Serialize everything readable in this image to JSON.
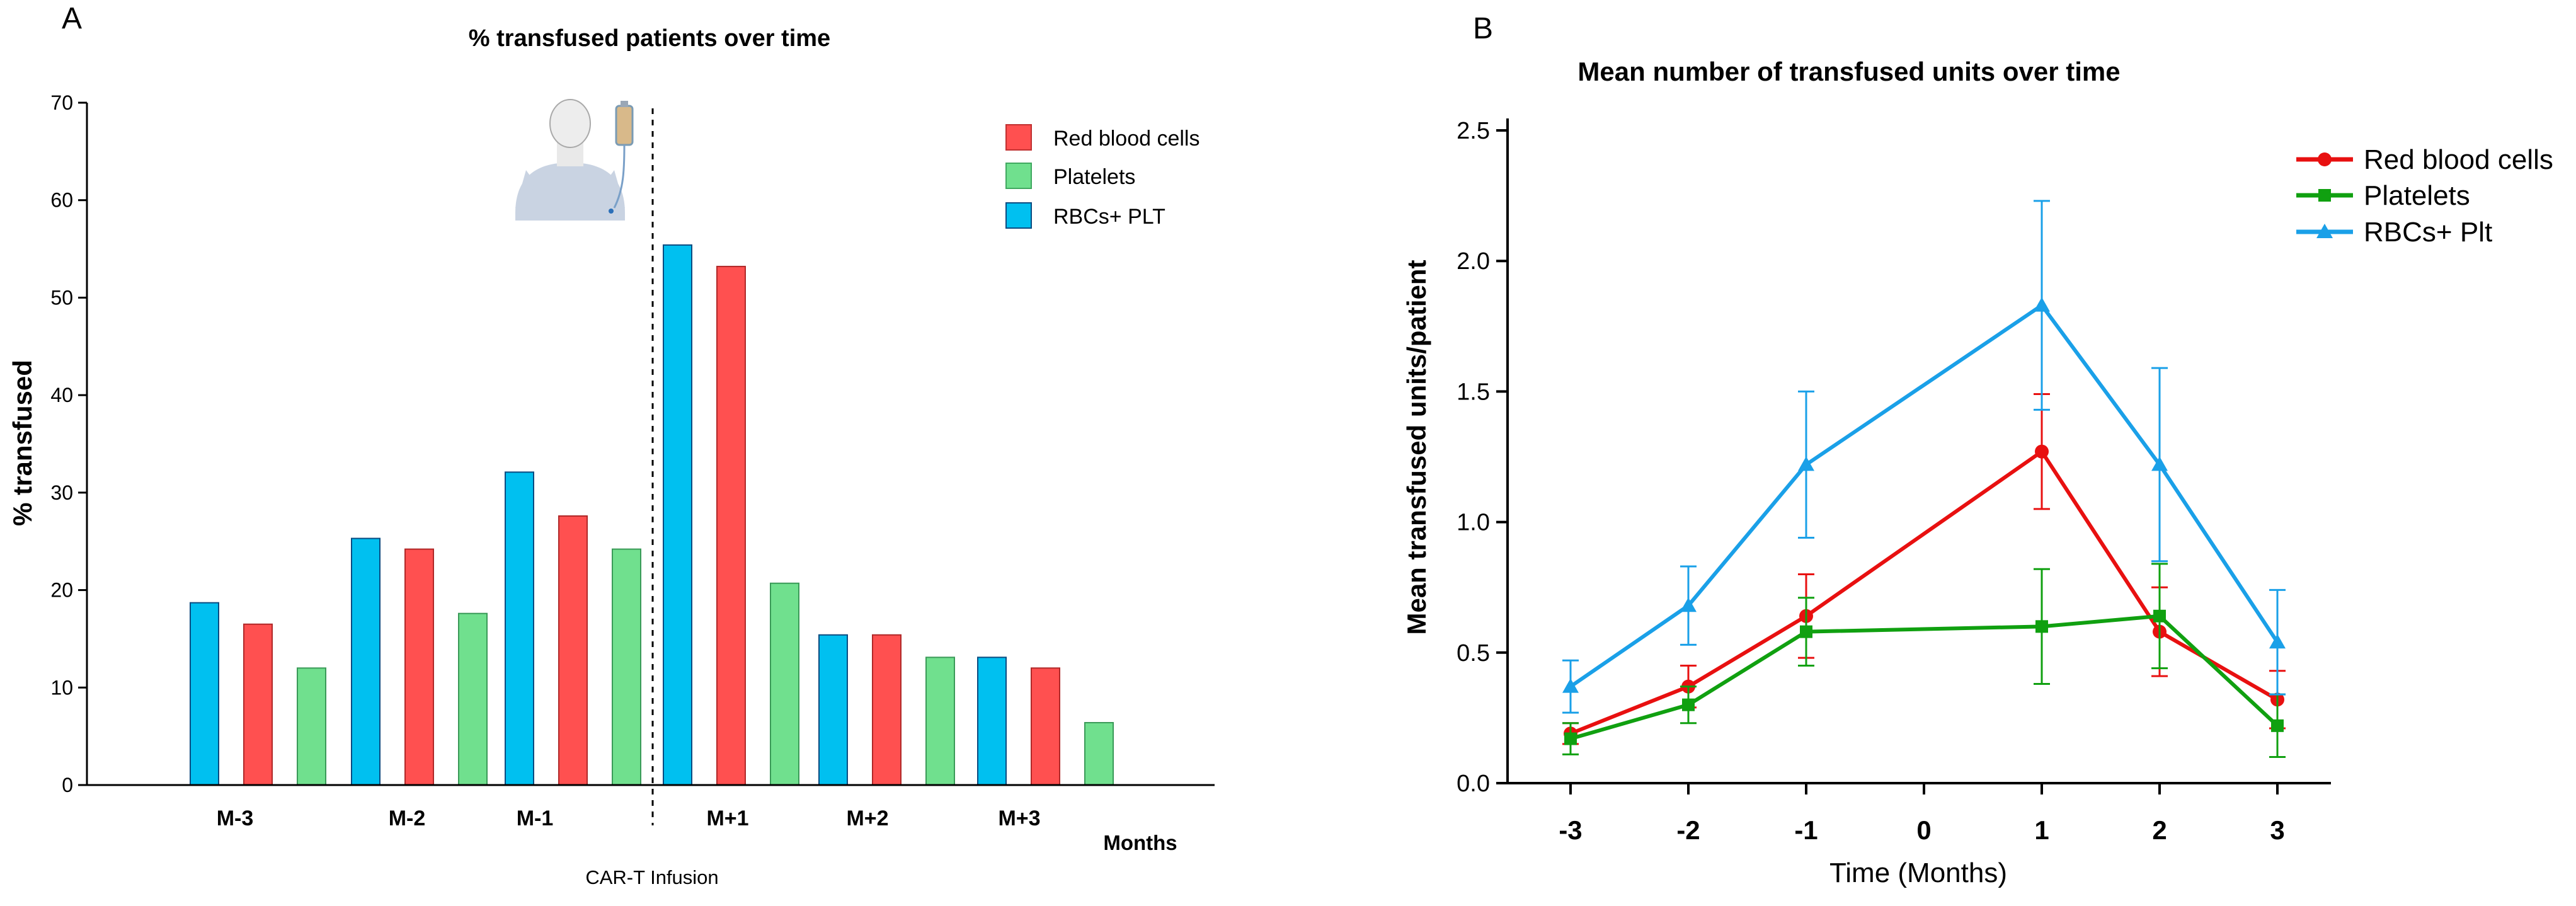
{
  "chart_data": [
    {
      "type": "bar",
      "panel_label": "A",
      "title": "%  transfused patients over time",
      "ylabel": "% transfused",
      "xlabel": "Months",
      "ylim": [
        0,
        70
      ],
      "yticks": [
        0,
        10,
        20,
        30,
        40,
        50,
        60,
        70
      ],
      "categories": [
        "M-3",
        "M-2",
        "M-1",
        "M+1",
        "M+2",
        "M+3"
      ],
      "series": [
        {
          "name": "Red blood cells",
          "color": "#ff5050",
          "values": [
            16.5,
            24.2,
            27.6,
            53.2,
            15.4,
            12.0
          ]
        },
        {
          "name": "Platelets",
          "color": "#70e08e",
          "values": [
            12.0,
            17.6,
            24.2,
            20.7,
            13.1,
            6.4
          ]
        },
        {
          "name": "RBCs+ PLT",
          "color": "#00c0f0",
          "values": [
            18.7,
            25.3,
            32.1,
            55.4,
            15.4,
            13.1
          ]
        }
      ],
      "bar_order": [
        [
          "RBCs+ PLT",
          "Red blood cells",
          "Platelets"
        ],
        [
          "RBCs+ PLT",
          "Red blood cells",
          "Platelets"
        ],
        [
          "RBCs+ PLT",
          "Red blood cells",
          "Platelets"
        ],
        [
          "RBCs+ PLT",
          "Red blood cells",
          "Platelets"
        ],
        [
          "RBCs+ PLT",
          "Red blood cells",
          "Platelets"
        ],
        [
          "RBCs+ PLT",
          "Red blood cells",
          "Platelets"
        ]
      ],
      "legend_position": "top-right",
      "annotation": "CAR-T Infusion",
      "infusion_marker": "between M-1 and M+1"
    },
    {
      "type": "line",
      "panel_label": "B",
      "title": "Mean number of transfused units over time",
      "xlabel": "Time (Months)",
      "ylabel": "Mean transfused units/patient",
      "x": [
        -3,
        -2,
        -1,
        1,
        2,
        3
      ],
      "xticks": [
        -3,
        -2,
        -1,
        0,
        1,
        2,
        3
      ],
      "ylim": [
        0,
        2.5
      ],
      "yticks": [
        "0.0",
        "0.5",
        "1.0",
        "1.5",
        "2.0",
        "2.5"
      ],
      "series": [
        {
          "name": "Red blood cells",
          "color": "#e81010",
          "marker": "circle",
          "values": [
            0.19,
            0.37,
            0.64,
            1.27,
            0.58,
            0.32
          ],
          "error": [
            0.04,
            0.08,
            0.16,
            0.22,
            0.17,
            0.11
          ]
        },
        {
          "name": "Platelets",
          "color": "#10a010",
          "marker": "square",
          "values": [
            0.17,
            0.3,
            0.58,
            0.6,
            0.64,
            0.22
          ],
          "error": [
            0.06,
            0.07,
            0.13,
            0.22,
            0.2,
            0.12
          ]
        },
        {
          "name": "RBCs+ Plt",
          "color": "#1aa0e8",
          "marker": "triangle",
          "values": [
            0.37,
            0.68,
            1.22,
            1.83,
            1.22,
            0.54
          ],
          "error": [
            0.1,
            0.15,
            0.28,
            0.4,
            0.37,
            0.2
          ]
        }
      ],
      "legend_position": "top-right"
    }
  ]
}
